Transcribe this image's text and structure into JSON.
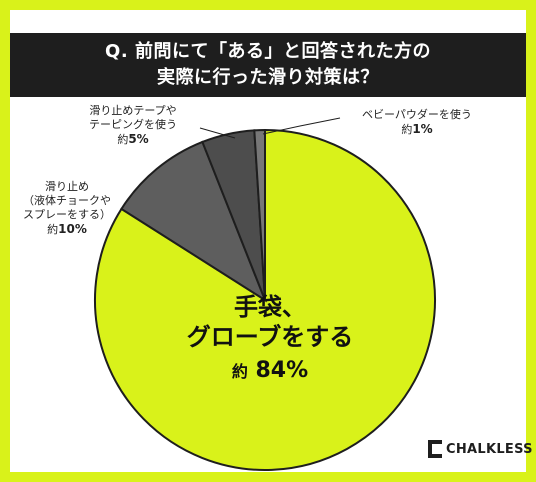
{
  "title": {
    "line1": "Q. 前問にて「ある」と回答された方の",
    "line2": "実際に行った滑り対策は？"
  },
  "chart_data": {
    "type": "pie",
    "slices": [
      {
        "label_lines": [
          "手袋、",
          "グローブをする"
        ],
        "prefix": "約",
        "value": 84,
        "value_label": "84%",
        "color": "#d9f21a"
      },
      {
        "label_lines": [
          "滑り止め",
          "（液体チョークや",
          "スプレーをする）"
        ],
        "prefix": "約",
        "value": 10,
        "value_label": "10%",
        "color": "#5e5e5e"
      },
      {
        "label_lines": [
          "滑り止めテープや",
          "テーピングを使う"
        ],
        "prefix": "約",
        "value": 5,
        "value_label": "5%",
        "color": "#4d4d4d"
      },
      {
        "label_lines": [
          "ベビーパウダーを使う"
        ],
        "prefix": "約",
        "value": 1,
        "value_label": "1%",
        "color": "#777777"
      }
    ]
  },
  "logo": {
    "text": "CHALKLESS"
  },
  "colors": {
    "accent": "#d9f21a",
    "dark": "#1e1e1e"
  }
}
